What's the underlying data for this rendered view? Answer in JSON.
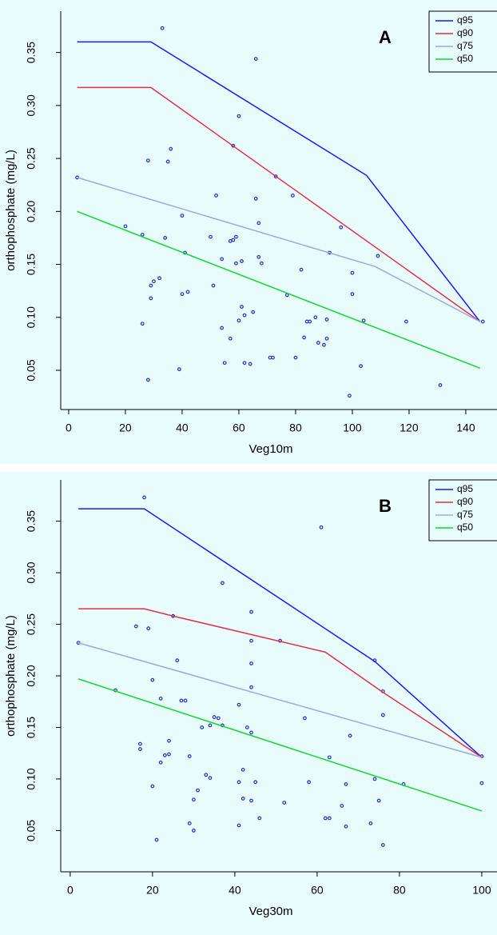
{
  "chart_data": [
    {
      "type": "scatter",
      "panel_label": "A",
      "x_label": "Veg10m",
      "y_label": "orthophosphate (mg/L)",
      "xlim": [
        -2.8,
        151
      ],
      "ylim": [
        0.013,
        0.389
      ],
      "xticks": [
        0,
        20,
        40,
        60,
        80,
        100,
        120,
        140
      ],
      "yticks": [
        0.05,
        {
          "value": 0.1,
          "label": "0.10"
        },
        0.15,
        {
          "value": 0.2,
          "label": "0.20"
        },
        0.25,
        {
          "value": 0.3,
          "label": "0.30"
        },
        0.35
      ],
      "legend": "upper right",
      "points": {
        "color": "#2233cc",
        "x": [
          3,
          20,
          26,
          26,
          28,
          28,
          29,
          29,
          30,
          32,
          33,
          34,
          35,
          36,
          39,
          40,
          40,
          41,
          42,
          50,
          51,
          52,
          54,
          54,
          55,
          57,
          57,
          58,
          58,
          59,
          59,
          60,
          60,
          61,
          61,
          62,
          62,
          64,
          65,
          66,
          66,
          67,
          67,
          68,
          71,
          72,
          73,
          77,
          79,
          80,
          82,
          83,
          84,
          85,
          87,
          88,
          90,
          91,
          91,
          92,
          96,
          99,
          100,
          100,
          103,
          104,
          109,
          119,
          131,
          146
        ],
        "values": [
          0.232,
          0.186,
          0.178,
          0.094,
          0.041,
          0.248,
          0.118,
          0.13,
          0.134,
          0.137,
          0.373,
          0.175,
          0.247,
          0.259,
          0.051,
          0.196,
          0.122,
          0.161,
          0.124,
          0.176,
          0.13,
          0.215,
          0.09,
          0.155,
          0.057,
          0.172,
          0.08,
          0.173,
          0.262,
          0.151,
          0.176,
          0.097,
          0.29,
          0.11,
          0.153,
          0.102,
          0.057,
          0.056,
          0.105,
          0.212,
          0.344,
          0.189,
          0.157,
          0.151,
          0.062,
          0.062,
          0.233,
          0.121,
          0.215,
          0.062,
          0.145,
          0.081,
          0.096,
          0.096,
          0.1,
          0.076,
          0.074,
          0.098,
          0.08,
          0.161,
          0.185,
          0.026,
          0.122,
          0.142,
          0.054,
          0.097,
          0.158,
          0.096,
          0.036,
          0.096
        ]
      },
      "series": [
        {
          "name": "q95",
          "color": "#1a1aff",
          "x": [
            3,
            29,
            105,
            145
          ],
          "values": [
            0.36,
            0.36,
            0.234,
            0.096
          ]
        },
        {
          "name": "q90",
          "color": "#e0304a",
          "x": [
            3,
            29,
            145
          ],
          "values": [
            0.317,
            0.317,
            0.096
          ]
        },
        {
          "name": "q75",
          "color": "#a0a8e0",
          "x": [
            3,
            108,
            145
          ],
          "values": [
            0.232,
            0.148,
            0.096
          ]
        },
        {
          "name": "q50",
          "color": "#10d830",
          "x": [
            3,
            145
          ],
          "values": [
            0.2,
            0.052
          ]
        }
      ]
    },
    {
      "type": "scatter",
      "panel_label": "B",
      "x_label": "Veg30m",
      "y_label": "orthophosphate (mg/L)",
      "xlim": [
        -2.3,
        103.7
      ],
      "ylim": [
        0.01,
        0.39
      ],
      "xticks": [
        0,
        20,
        40,
        60,
        80,
        100
      ],
      "yticks": [
        0.05,
        {
          "value": 0.1,
          "label": "0.10"
        },
        0.15,
        {
          "value": 0.2,
          "label": "0.20"
        },
        0.25,
        {
          "value": 0.3,
          "label": "0.30"
        },
        0.35
      ],
      "legend": "upper right",
      "points": {
        "color": "#2233cc",
        "x": [
          2,
          11,
          16,
          17,
          17,
          18,
          19,
          20,
          20,
          21,
          22,
          22,
          23,
          24,
          24,
          25,
          26,
          27,
          28,
          29,
          29,
          30,
          30,
          31,
          32,
          33,
          34,
          34,
          35,
          36,
          37,
          37,
          41,
          41,
          41,
          42,
          42,
          43,
          44,
          44,
          44,
          44,
          44,
          44,
          45,
          46,
          51,
          52,
          57,
          58,
          61,
          62,
          63,
          63,
          66,
          67,
          67,
          68,
          73,
          74,
          74,
          75,
          76,
          76,
          76,
          81,
          100,
          100
        ],
        "values": [
          0.232,
          0.186,
          0.248,
          0.134,
          0.129,
          0.373,
          0.246,
          0.093,
          0.196,
          0.041,
          0.178,
          0.116,
          0.123,
          0.137,
          0.124,
          0.258,
          0.215,
          0.176,
          0.176,
          0.057,
          0.122,
          0.05,
          0.08,
          0.089,
          0.15,
          0.104,
          0.101,
          0.152,
          0.16,
          0.159,
          0.29,
          0.152,
          0.097,
          0.055,
          0.172,
          0.109,
          0.081,
          0.15,
          0.262,
          0.234,
          0.212,
          0.189,
          0.145,
          0.079,
          0.097,
          0.062,
          0.234,
          0.077,
          0.159,
          0.097,
          0.344,
          0.062,
          0.062,
          0.121,
          0.074,
          0.095,
          0.054,
          0.142,
          0.057,
          0.215,
          0.1,
          0.079,
          0.162,
          0.185,
          0.036,
          0.095,
          0.122,
          0.096
        ]
      },
      "series": [
        {
          "name": "q95",
          "color": "#1a1aff",
          "x": [
            2,
            18,
            74,
            100
          ],
          "values": [
            0.362,
            0.362,
            0.214,
            0.121
          ]
        },
        {
          "name": "q90",
          "color": "#e0304a",
          "x": [
            2,
            18,
            25,
            62,
            76,
            100
          ],
          "values": [
            0.265,
            0.265,
            0.258,
            0.223,
            0.184,
            0.121
          ]
        },
        {
          "name": "q75",
          "color": "#a0a8e0",
          "x": [
            2,
            100
          ],
          "values": [
            0.232,
            0.121
          ]
        },
        {
          "name": "q50",
          "color": "#10d830",
          "x": [
            2,
            100
          ],
          "values": [
            0.197,
            0.069
          ]
        }
      ]
    }
  ]
}
